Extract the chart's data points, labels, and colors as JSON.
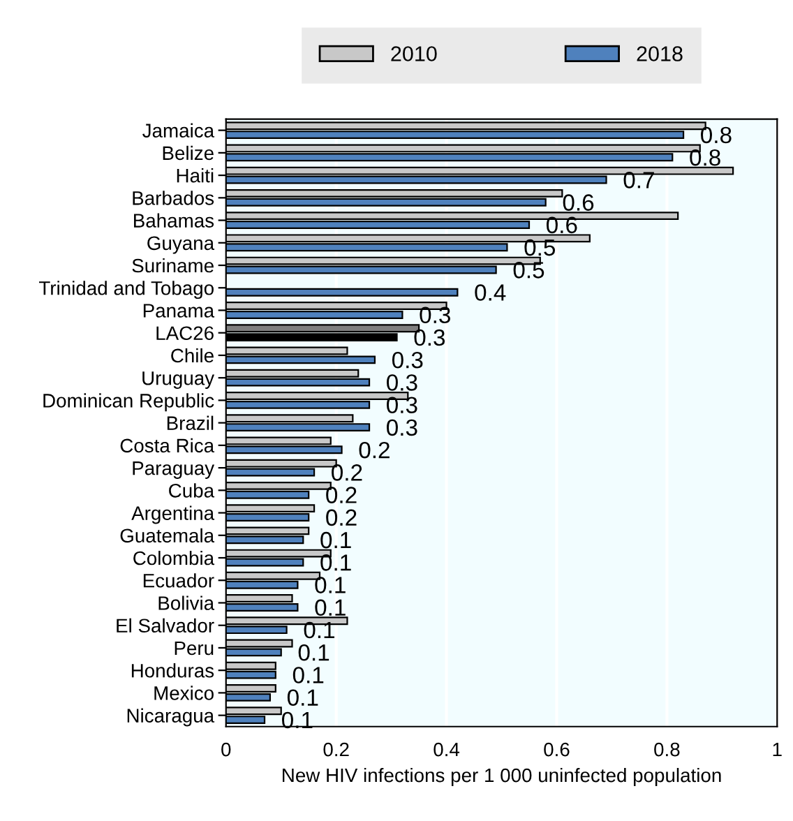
{
  "chart_data": {
    "type": "bar",
    "orientation": "horizontal",
    "categories": [
      "Jamaica",
      "Belize",
      "Haiti",
      "Barbados",
      "Bahamas",
      "Guyana",
      "Suriname",
      "Trinidad and Tobago",
      "Panama",
      "LAC26",
      "Chile",
      "Uruguay",
      "Dominican Republic",
      "Brazil",
      "Costa Rica",
      "Paraguay",
      "Cuba",
      "Argentina",
      "Guatemala",
      "Colombia",
      "Ecuador",
      "Bolivia",
      "El Salvador",
      "Peru",
      "Honduras",
      "Mexico",
      "Nicaragua"
    ],
    "series": [
      {
        "name": "2010",
        "color": "#c8c8c8",
        "colors": [
          "#c8c8c8",
          "#c8c8c8",
          "#c8c8c8",
          "#c8c8c8",
          "#c8c8c8",
          "#c8c8c8",
          "#c8c8c8",
          "#c8c8c8",
          "#c8c8c8",
          "#7f7f7f",
          "#c8c8c8",
          "#c8c8c8",
          "#c8c8c8",
          "#c8c8c8",
          "#c8c8c8",
          "#c8c8c8",
          "#c8c8c8",
          "#c8c8c8",
          "#c8c8c8",
          "#c8c8c8",
          "#c8c8c8",
          "#c8c8c8",
          "#c8c8c8",
          "#c8c8c8",
          "#c8c8c8",
          "#c8c8c8",
          "#c8c8c8"
        ],
        "values": [
          0.87,
          0.86,
          0.92,
          0.61,
          0.82,
          0.66,
          0.57,
          null,
          0.4,
          0.35,
          0.22,
          0.24,
          0.33,
          0.23,
          0.19,
          0.2,
          0.19,
          0.16,
          0.15,
          0.19,
          0.17,
          0.12,
          0.22,
          0.12,
          0.09,
          0.09,
          0.1
        ]
      },
      {
        "name": "2018",
        "color": "#4f81bd",
        "colors": [
          "#4f81bd",
          "#4f81bd",
          "#4f81bd",
          "#4f81bd",
          "#4f81bd",
          "#4f81bd",
          "#4f81bd",
          "#4f81bd",
          "#4f81bd",
          "#000000",
          "#4f81bd",
          "#4f81bd",
          "#4f81bd",
          "#4f81bd",
          "#4f81bd",
          "#4f81bd",
          "#4f81bd",
          "#4f81bd",
          "#4f81bd",
          "#4f81bd",
          "#4f81bd",
          "#4f81bd",
          "#4f81bd",
          "#4f81bd",
          "#4f81bd",
          "#4f81bd",
          "#4f81bd"
        ],
        "values": [
          0.83,
          0.81,
          0.69,
          0.58,
          0.55,
          0.51,
          0.49,
          0.42,
          0.32,
          0.31,
          0.27,
          0.26,
          0.26,
          0.26,
          0.21,
          0.16,
          0.15,
          0.15,
          0.14,
          0.14,
          0.13,
          0.13,
          0.11,
          0.1,
          0.09,
          0.08,
          0.07
        ],
        "value_labels": [
          "0.8",
          "0.8",
          "0.7",
          "0.6",
          "0.6",
          "0.5",
          "0.5",
          "0.4",
          "0.3",
          "0.3",
          "0.3",
          "0.3",
          "0.3",
          "0.3",
          "0.2",
          "0.2",
          "0.2",
          "0.2",
          "0.1",
          "0.1",
          "0.1",
          "0.1",
          "0.1",
          "0.1",
          "0.1",
          "0.1",
          "0.1"
        ]
      }
    ],
    "xlabel": "New HIV infections per 1 000 uninfected population",
    "xlim": [
      0,
      1
    ],
    "xticks": [
      0,
      0.2,
      0.4,
      0.6,
      0.8,
      1
    ],
    "grid": "x",
    "legend": "top"
  }
}
